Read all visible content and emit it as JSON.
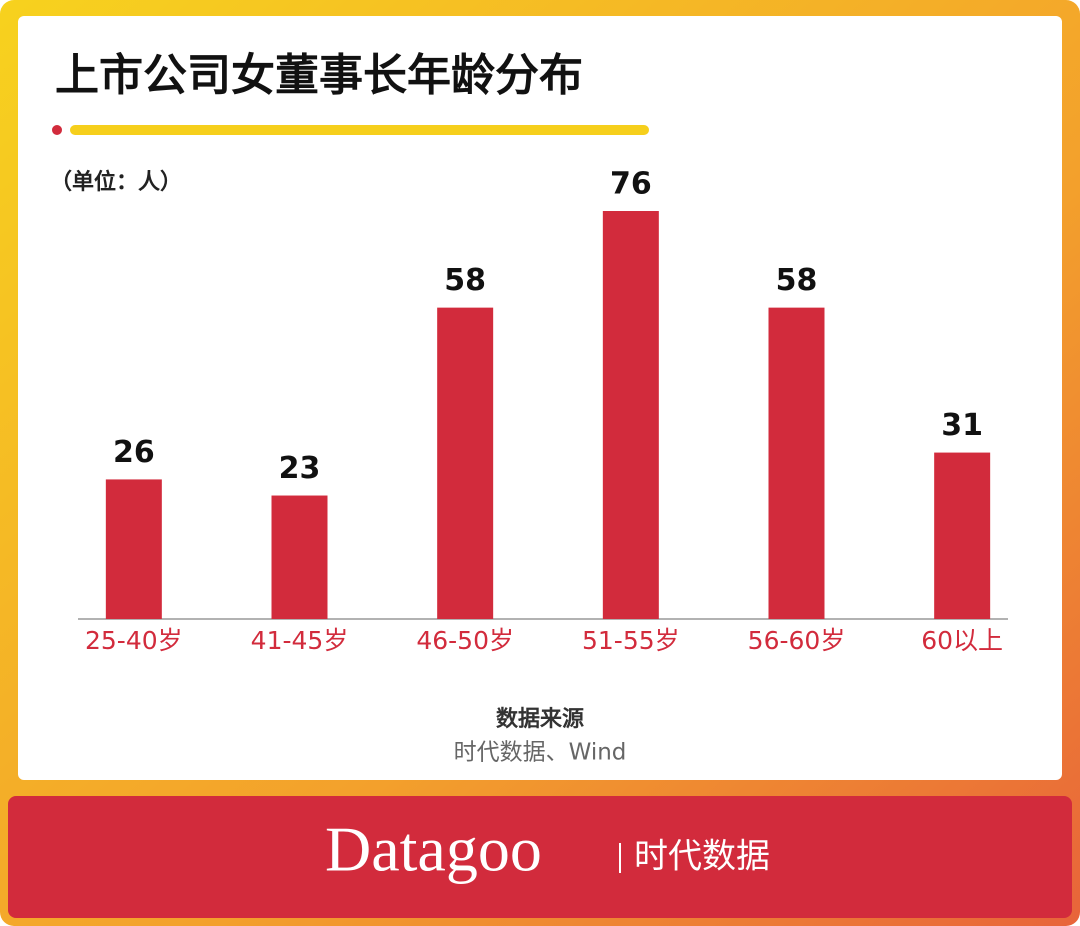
{
  "chart_data": {
    "type": "bar",
    "title": "上市公司女董事长年龄分布",
    "unit_note": "（单位：人）",
    "categories": [
      "25-40岁",
      "41-45岁",
      "46-50岁",
      "51-55岁",
      "56-60岁",
      "60以上"
    ],
    "values": [
      26,
      23,
      58,
      76,
      58,
      31
    ],
    "color": "#d22b3c",
    "source_title": "数据来源",
    "source": "时代数据、Wind"
  },
  "footer": {
    "logo": "Datagoo",
    "name": "时代数据"
  }
}
